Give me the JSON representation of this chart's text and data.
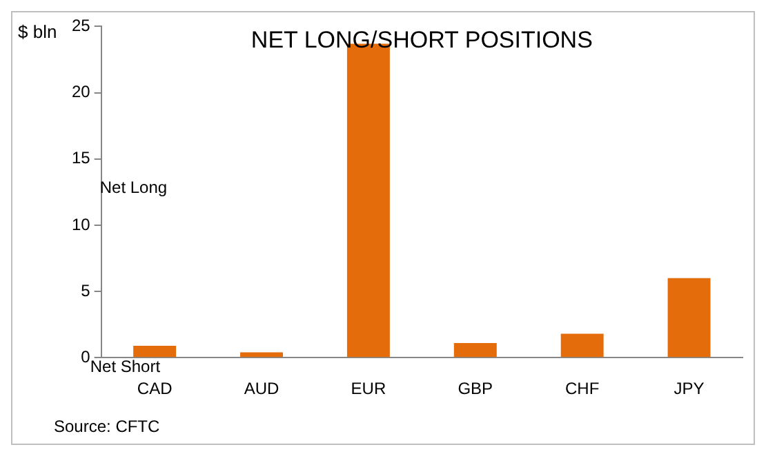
{
  "chart_data": {
    "type": "bar",
    "title": "NET LONG/SHORT POSITIONS",
    "ylabel": "$ bln",
    "categories": [
      "CAD",
      "AUD",
      "EUR",
      "GBP",
      "CHF",
      "JPY"
    ],
    "values": [
      0.9,
      0.4,
      23.7,
      1.1,
      1.8,
      6.0
    ],
    "color": "#e46c0a",
    "ylim": [
      0,
      25
    ],
    "yticks": [
      0,
      5,
      10,
      15,
      20,
      25
    ],
    "grid": false,
    "legend": false,
    "annotations": [
      "Net Long",
      "Net Short",
      "Source: CFTC"
    ]
  }
}
